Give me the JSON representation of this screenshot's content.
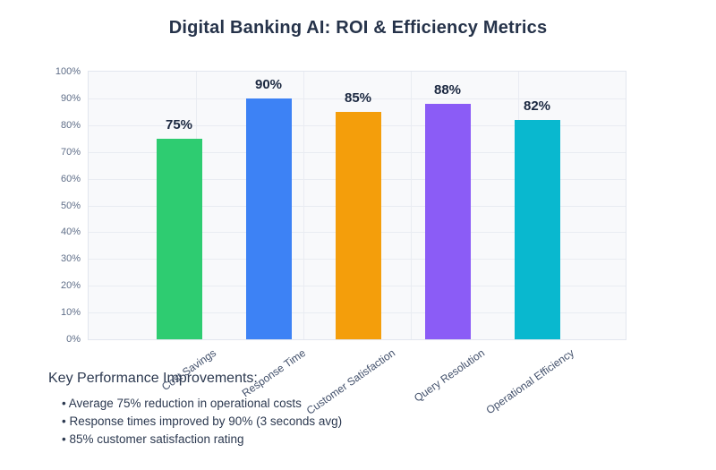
{
  "chart_data": {
    "type": "bar",
    "title": "Digital Banking AI: ROI & Efficiency Metrics",
    "categories": [
      "Cost Savings",
      "Response Time",
      "Customer Satisfaction",
      "Query Resolution",
      "Operational Efficiency"
    ],
    "values": [
      75,
      90,
      85,
      88,
      82
    ],
    "value_labels": [
      "75%",
      "90%",
      "85%",
      "88%",
      "82%"
    ],
    "bar_colors": [
      "#2ecc71",
      "#3d82f5",
      "#f49e0b",
      "#8b5cf6",
      "#09b8cf"
    ],
    "xlabel": "",
    "ylabel": "",
    "ylim": [
      0,
      100
    ],
    "ytick_labels": [
      "0%",
      "10%",
      "20%",
      "30%",
      "40%",
      "50%",
      "60%",
      "70%",
      "80%",
      "90%",
      "100%"
    ],
    "grid": true,
    "legend": false
  },
  "annotations": {
    "heading": "Key Performance Improvements:",
    "bullet_char": "•",
    "bullets": [
      "Average 75% reduction in operational costs",
      "Response times improved by 90% (3 seconds avg)",
      "85% customer satisfaction rating"
    ]
  },
  "theme": {
    "title_color": "#26334a",
    "ytick_color": "#5f6e88",
    "xtick_color": "#42506b",
    "value_label_color": "#1b2840",
    "text_color": "#2c3950",
    "plot_bg": "#f8f9fb",
    "grid_color": "#e9ecf2",
    "border_color": "#e2e6ee"
  }
}
